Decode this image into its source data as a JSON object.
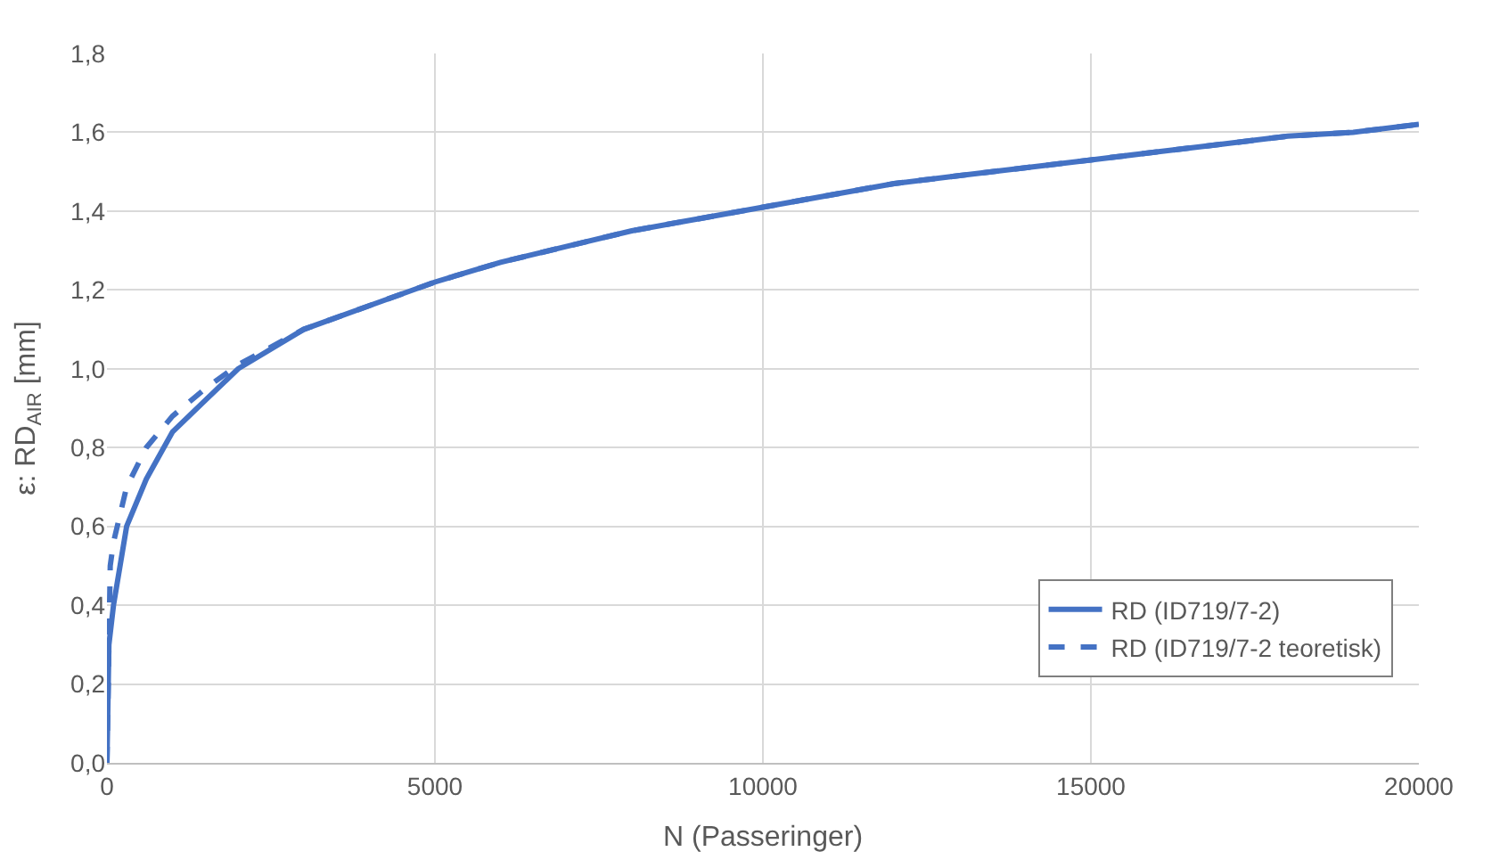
{
  "chart_data": {
    "type": "line",
    "xlabel": "N (Passeringer)",
    "ylabel": "ε: RD$_{AIR}$ [mm]",
    "xlim": [
      0,
      20000
    ],
    "xticks": [
      0,
      5000,
      10000,
      15000,
      20000
    ],
    "ylim": [
      0,
      1.8
    ],
    "yticks": [
      {
        "value": 0,
        "label": "0,0"
      },
      {
        "value": 0.2,
        "label": "0,2"
      },
      {
        "value": 0.4,
        "label": "0,4"
      },
      {
        "value": 0.6,
        "label": "0,6"
      },
      {
        "value": 0.8,
        "label": "0,8"
      },
      {
        "value": 1.0,
        "label": "1,0"
      },
      {
        "value": 1.2,
        "label": "1,2"
      },
      {
        "value": 1.4,
        "label": "1,4"
      },
      {
        "value": 1.6,
        "label": "1,6"
      },
      {
        "value": 1.8,
        "label": "1,8"
      }
    ],
    "grid": true,
    "legend": "bottom right",
    "series": [
      {
        "name": "RD (ID719/7-2)",
        "color": "#4472c4",
        "line_style": "solid",
        "x": [
          0,
          30,
          100,
          300,
          600,
          1000,
          1500,
          2000,
          3000,
          4000,
          5000,
          6000,
          7000,
          8000,
          9000,
          10000,
          11000,
          12000,
          13000,
          14000,
          15000,
          16000,
          17000,
          18000,
          19000,
          20000
        ],
        "values": [
          0,
          0.3,
          0.4,
          0.6,
          0.72,
          0.84,
          0.92,
          1.0,
          1.1,
          1.16,
          1.22,
          1.27,
          1.31,
          1.35,
          1.38,
          1.41,
          1.44,
          1.47,
          1.49,
          1.51,
          1.53,
          1.55,
          1.57,
          1.59,
          1.6,
          1.62
        ]
      },
      {
        "name": "RD (ID719/7-2 teoretisk)",
        "color": "#4472c4",
        "line_style": "dashed",
        "x": [
          0,
          50,
          100,
          300,
          600,
          1000,
          1500,
          2000,
          3000,
          4000,
          5000,
          6000,
          7000,
          8000,
          9000,
          10000,
          11000,
          12000,
          13000,
          14000,
          15000,
          16000,
          17000,
          18000,
          19000,
          20000
        ],
        "values": [
          0,
          0.5,
          0.56,
          0.7,
          0.8,
          0.88,
          0.95,
          1.01,
          1.1,
          1.16,
          1.22,
          1.27,
          1.31,
          1.35,
          1.38,
          1.41,
          1.44,
          1.47,
          1.49,
          1.51,
          1.53,
          1.55,
          1.57,
          1.59,
          1.6,
          1.62
        ]
      }
    ]
  }
}
